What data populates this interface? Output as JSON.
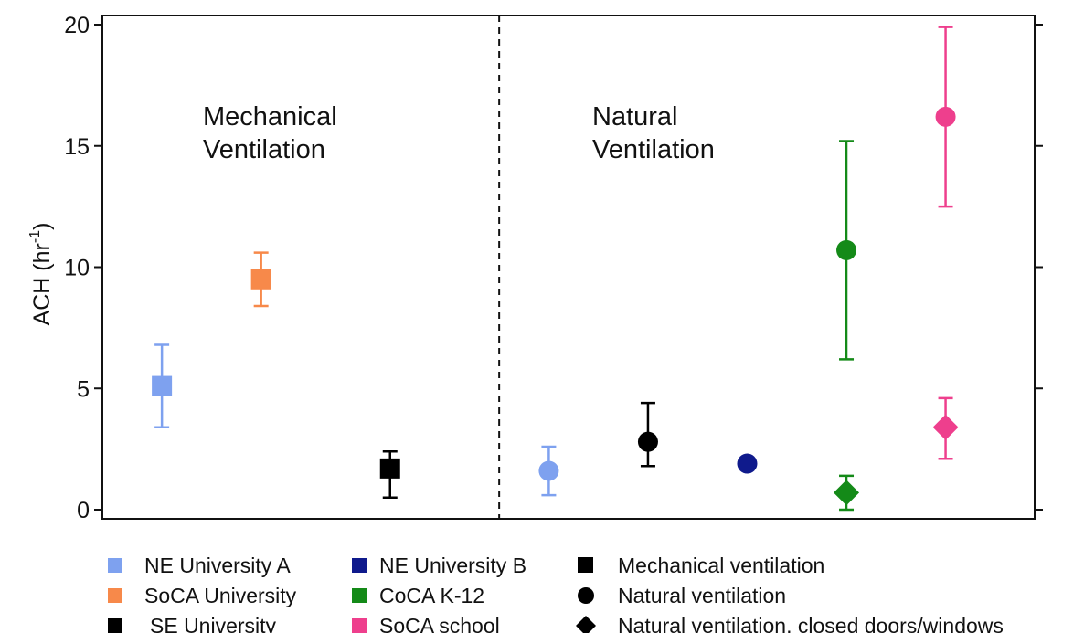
{
  "chart_data": {
    "type": "scatter",
    "ylabel": "ACH (hr",
    "ylabel_sup": "-1",
    "ylabel_close": ")",
    "ylim": [
      0,
      20
    ],
    "yticks": [
      0,
      5,
      10,
      15,
      20
    ],
    "grid": false,
    "region_labels": [
      {
        "lines": [
          "Mechanical",
          "Ventilation"
        ]
      },
      {
        "lines": [
          "Natural",
          "Ventilation"
        ]
      }
    ],
    "divider_x": 3.6,
    "xlim": [
      -0.4,
      7.8
    ],
    "points": [
      {
        "x": 0.2,
        "y": 5.1,
        "err_low": 3.4,
        "err_high": 6.8,
        "site": "NE University A",
        "marker": "square"
      },
      {
        "x": 1.2,
        "y": 9.5,
        "err_low": 8.4,
        "err_high": 10.6,
        "site": "SoCA University",
        "marker": "square"
      },
      {
        "x": 2.5,
        "y": 1.7,
        "err_low": 0.5,
        "err_high": 2.4,
        "site": "SE University",
        "marker": "square"
      },
      {
        "x": 4.1,
        "y": 1.6,
        "err_low": 0.6,
        "err_high": 2.6,
        "site": "NE University A",
        "marker": "circle"
      },
      {
        "x": 5.1,
        "y": 2.8,
        "err_low": 1.8,
        "err_high": 4.4,
        "site": "SE University",
        "marker": "circle"
      },
      {
        "x": 6.1,
        "y": 1.9,
        "site": "NE University B",
        "marker": "circle"
      },
      {
        "x": 7.1,
        "y": 10.7,
        "err_low": 6.2,
        "err_high": 15.2,
        "site": "CoCA K-12",
        "marker": "circle"
      },
      {
        "x": 7.1,
        "y": 0.7,
        "err_low": 0.0,
        "err_high": 1.4,
        "site": "CoCA K-12",
        "marker": "diamond"
      },
      {
        "x": 8.1,
        "y": 16.2,
        "err_low": 12.5,
        "err_high": 19.9,
        "site": "SoCA school",
        "marker": "circle"
      },
      {
        "x": 8.1,
        "y": 3.4,
        "err_low": 2.1,
        "err_high": 4.6,
        "site": "SoCA school",
        "marker": "diamond"
      }
    ],
    "colors": {
      "NE University A": "#7ea1ef",
      "SoCA University": "#f7894a",
      "SE University": "#000000",
      "NE University B": "#0f1a8c",
      "CoCA K-12": "#148a18",
      "SoCA school": "#ee3f8d"
    },
    "legend": {
      "placement": "bottom",
      "site_entries": [
        {
          "label": "NE University A",
          "color": "#7ea1ef"
        },
        {
          "label": "SoCA University",
          "color": "#f7894a"
        },
        {
          "label": "SE University",
          "color": "#000000"
        },
        {
          "label": "NE University B",
          "color": "#0f1a8c"
        },
        {
          "label": "CoCA K-12",
          "color": "#148a18"
        },
        {
          "label": "SoCA school",
          "color": "#ee3f8d"
        }
      ],
      "marker_entries": [
        {
          "label": "Mechanical ventilation",
          "marker": "square"
        },
        {
          "label": "Natural ventilation",
          "marker": "circle"
        },
        {
          "label": "Natural ventilation, closed doors/windows",
          "marker": "diamond"
        }
      ]
    }
  }
}
